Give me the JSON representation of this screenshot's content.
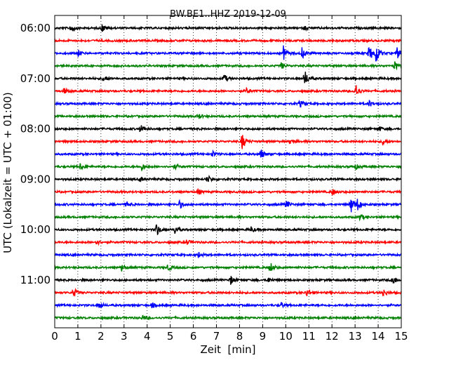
{
  "chart_data": {
    "type": "line",
    "title": "BW.BE1..HHZ 2019-12-09",
    "xlabel": "Zeit  [min]",
    "ylabel": "UTC (Lokalzeit = UTC + 01:00)",
    "xlim": [
      0,
      15
    ],
    "x_ticks": [
      0,
      1,
      2,
      3,
      4,
      5,
      6,
      7,
      8,
      9,
      10,
      11,
      12,
      13,
      14,
      15
    ],
    "y_ticks": [
      "06:00",
      "07:00",
      "08:00",
      "09:00",
      "10:00",
      "11:00"
    ],
    "grid": "vertical-dotted",
    "trace_colors": [
      "#000000",
      "#ff0000",
      "#0000ff",
      "#008000"
    ],
    "traces": [
      {
        "start": "06:00",
        "events": [
          {
            "t": 0.7,
            "a": 7
          },
          {
            "t": 2.05,
            "a": 6
          },
          {
            "t": 10.8,
            "a": 3
          }
        ]
      },
      {
        "start": "06:15",
        "events": []
      },
      {
        "start": "06:30",
        "events": [
          {
            "t": 1.0,
            "a": 5
          },
          {
            "t": 9.9,
            "a": 10
          },
          {
            "t": 10.7,
            "a": 8
          },
          {
            "t": 13.6,
            "a": 13
          },
          {
            "t": 13.9,
            "a": 15
          },
          {
            "t": 14.8,
            "a": 9
          }
        ]
      },
      {
        "start": "06:45",
        "events": [
          {
            "t": 9.8,
            "a": 5
          },
          {
            "t": 14.7,
            "a": 7
          }
        ]
      },
      {
        "start": "07:00",
        "events": [
          {
            "t": 2.1,
            "a": 6
          },
          {
            "t": 7.3,
            "a": 8
          },
          {
            "t": 10.8,
            "a": 14
          }
        ]
      },
      {
        "start": "07:15",
        "events": [
          {
            "t": 0.4,
            "a": 5
          },
          {
            "t": 8.3,
            "a": 4
          },
          {
            "t": 13.0,
            "a": 13
          }
        ]
      },
      {
        "start": "07:30",
        "events": [
          {
            "t": 10.6,
            "a": 5
          },
          {
            "t": 13.6,
            "a": 5
          }
        ]
      },
      {
        "start": "07:45",
        "events": [
          {
            "t": 6.2,
            "a": 4
          }
        ]
      },
      {
        "start": "08:00",
        "events": [
          {
            "t": 3.7,
            "a": 6
          },
          {
            "t": 14.0,
            "a": 4
          }
        ]
      },
      {
        "start": "08:15",
        "events": [
          {
            "t": 8.1,
            "a": 13
          },
          {
            "t": 10.2,
            "a": 4
          },
          {
            "t": 14.2,
            "a": 5
          }
        ]
      },
      {
        "start": "08:30",
        "events": [
          {
            "t": 6.8,
            "a": 5
          },
          {
            "t": 8.9,
            "a": 9
          }
        ]
      },
      {
        "start": "08:45",
        "events": [
          {
            "t": 1.1,
            "a": 5
          },
          {
            "t": 3.75,
            "a": 6
          },
          {
            "t": 5.2,
            "a": 4
          },
          {
            "t": 13.0,
            "a": 4
          }
        ]
      },
      {
        "start": "09:00",
        "events": [
          {
            "t": 3.7,
            "a": 4
          },
          {
            "t": 6.6,
            "a": 6
          }
        ]
      },
      {
        "start": "09:15",
        "events": [
          {
            "t": 6.2,
            "a": 4
          },
          {
            "t": 12.0,
            "a": 5
          }
        ]
      },
      {
        "start": "09:30",
        "events": [
          {
            "t": 3.1,
            "a": 4
          },
          {
            "t": 5.4,
            "a": 6
          },
          {
            "t": 10.0,
            "a": 6
          },
          {
            "t": 12.8,
            "a": 14
          },
          {
            "t": 13.1,
            "a": 8
          }
        ]
      },
      {
        "start": "09:45",
        "events": [
          {
            "t": 13.2,
            "a": 5
          }
        ]
      },
      {
        "start": "10:00",
        "events": [
          {
            "t": 4.4,
            "a": 10
          },
          {
            "t": 5.2,
            "a": 6
          },
          {
            "t": 8.5,
            "a": 4
          }
        ]
      },
      {
        "start": "10:15",
        "events": [
          {
            "t": 1.8,
            "a": 4
          },
          {
            "t": 5.7,
            "a": 4
          }
        ]
      },
      {
        "start": "10:30",
        "events": [
          {
            "t": 6.2,
            "a": 4
          }
        ]
      },
      {
        "start": "10:45",
        "events": [
          {
            "t": 2.9,
            "a": 5
          },
          {
            "t": 4.9,
            "a": 5
          },
          {
            "t": 9.3,
            "a": 9
          }
        ]
      },
      {
        "start": "11:00",
        "events": [
          {
            "t": 7.6,
            "a": 7
          },
          {
            "t": 9.2,
            "a": 4
          },
          {
            "t": 14.6,
            "a": 9
          }
        ]
      },
      {
        "start": "11:15",
        "events": [
          {
            "t": 0.8,
            "a": 8
          },
          {
            "t": 10.9,
            "a": 6
          },
          {
            "t": 14.2,
            "a": 6
          }
        ]
      },
      {
        "start": "11:30",
        "events": [
          {
            "t": 1.9,
            "a": 5
          },
          {
            "t": 4.2,
            "a": 4
          },
          {
            "t": 9.8,
            "a": 4
          }
        ]
      },
      {
        "start": "11:45",
        "events": [
          {
            "t": 3.8,
            "a": 4
          }
        ]
      }
    ]
  }
}
